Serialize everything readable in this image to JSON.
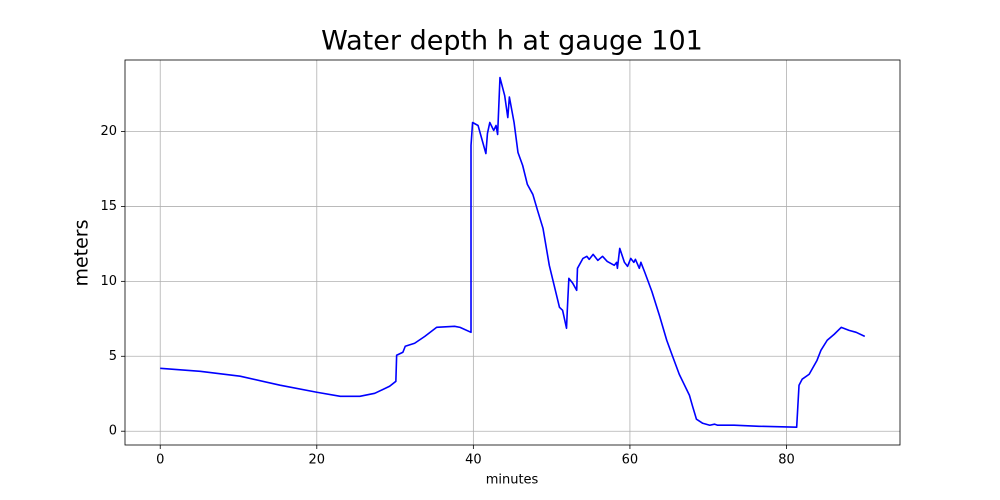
{
  "chart_data": {
    "type": "line",
    "title": "Water depth h at gauge 101",
    "xlabel": "minutes",
    "ylabel": "meters",
    "color": "#0000ff",
    "grid": true,
    "xlim": [
      -4.5,
      94.5
    ],
    "ylim": [
      -0.92,
      24.77
    ],
    "xticks": [
      0,
      20,
      40,
      60,
      80
    ],
    "yticks": [
      0,
      5,
      10,
      15,
      20
    ],
    "x": [
      0,
      5.1,
      10.2,
      15.3,
      20,
      23,
      25.5,
      27.4,
      29.3,
      30.1,
      30.2,
      31,
      31.3,
      32.5,
      33.8,
      35.3,
      37.6,
      38.3,
      39.7,
      39.7,
      39.9,
      40.6,
      41.6,
      41.8,
      42.1,
      42.6,
      42.9,
      43.1,
      43.4,
      44,
      44.4,
      44.6,
      45.2,
      45.7,
      46.3,
      46.9,
      47.6,
      48.2,
      48.9,
      49.7,
      51,
      51.4,
      51.9,
      52,
      52.2,
      52.7,
      53.2,
      53.3,
      54,
      54.5,
      54.8,
      55.3,
      55.9,
      56.5,
      57.1,
      58,
      58.3,
      58.4,
      58.7,
      59.3,
      59.7,
      60.1,
      60.5,
      60.7,
      61.2,
      61.4,
      61.9,
      62.8,
      63.8,
      64.7,
      65.4,
      66.3,
      67.6,
      68,
      68.5,
      69.3,
      70.2,
      70.8,
      71.2,
      73.3,
      76.5,
      81.3,
      81.6,
      82,
      82.9,
      83.9,
      84.4,
      85.2,
      86.1,
      87,
      88,
      88.9,
      90
    ],
    "values": [
      4.2,
      4.0,
      3.67,
      3.07,
      2.6,
      2.33,
      2.33,
      2.53,
      3.0,
      3.33,
      5.07,
      5.27,
      5.67,
      5.87,
      6.33,
      6.93,
      7.0,
      6.93,
      6.6,
      19.07,
      20.6,
      20.4,
      18.53,
      19.87,
      20.6,
      20.07,
      20.4,
      19.8,
      23.6,
      22.4,
      20.93,
      22.3,
      20.6,
      18.6,
      17.73,
      16.47,
      15.8,
      14.73,
      13.53,
      11.07,
      8.27,
      8.07,
      6.87,
      8.07,
      10.2,
      9.87,
      9.4,
      10.87,
      11.53,
      11.67,
      11.47,
      11.8,
      11.4,
      11.67,
      11.33,
      11.07,
      11.27,
      10.87,
      12.2,
      11.27,
      11.0,
      11.53,
      11.27,
      11.47,
      10.87,
      11.27,
      10.6,
      9.33,
      7.67,
      6.07,
      5.07,
      3.8,
      2.4,
      1.67,
      0.8,
      0.53,
      0.4,
      0.47,
      0.4,
      0.4,
      0.33,
      0.27,
      3.07,
      3.47,
      3.8,
      4.73,
      5.4,
      6.07,
      6.47,
      6.93,
      6.73,
      6.6,
      6.33
    ]
  }
}
